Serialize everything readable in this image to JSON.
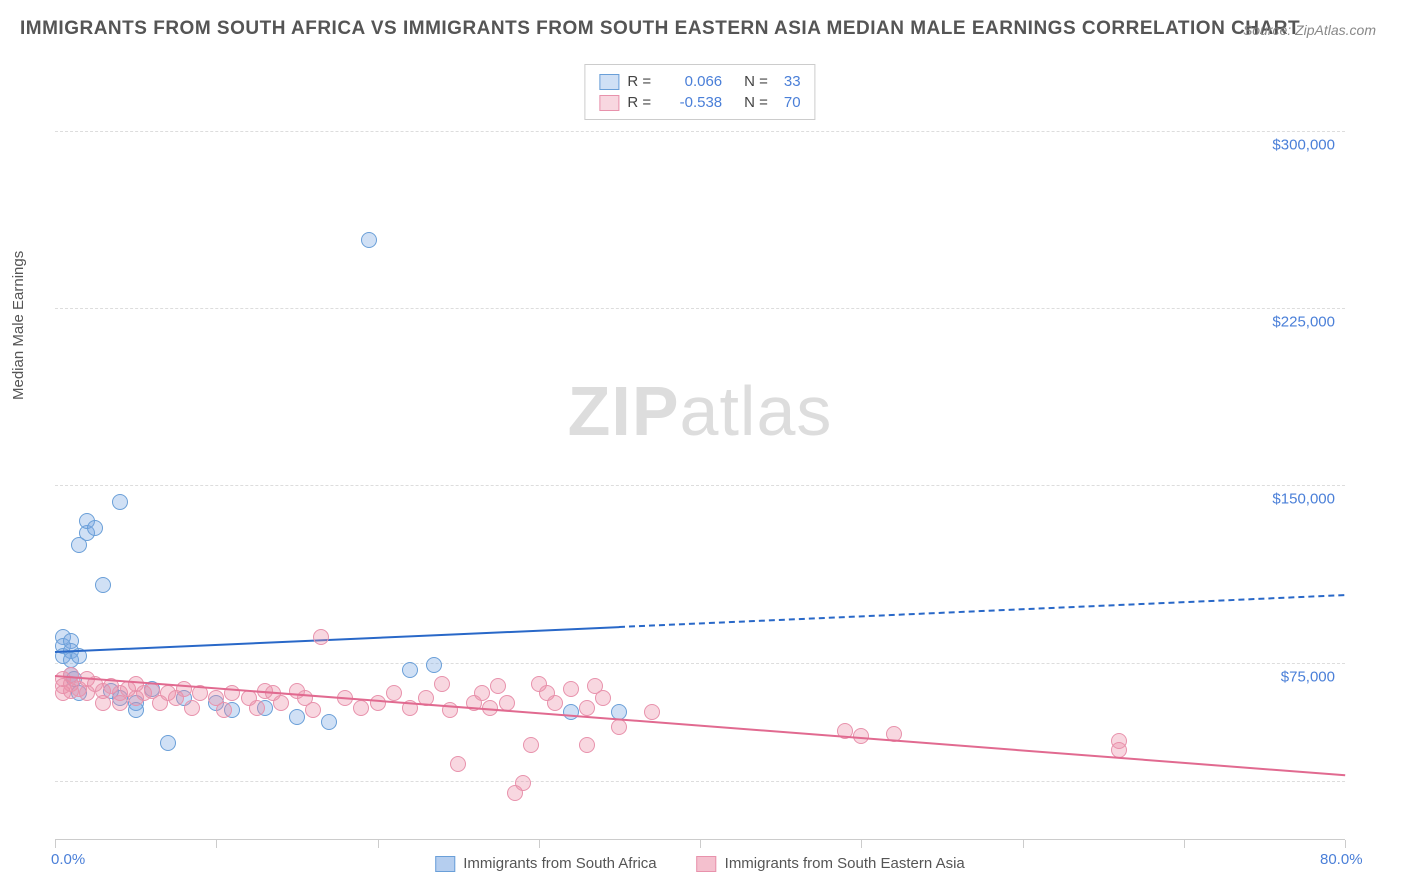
{
  "title": "IMMIGRANTS FROM SOUTH AFRICA VS IMMIGRANTS FROM SOUTH EASTERN ASIA MEDIAN MALE EARNINGS CORRELATION CHART",
  "source": "Source: ZipAtlas.com",
  "y_axis_label": "Median Male Earnings",
  "watermark_bold": "ZIP",
  "watermark_light": "atlas",
  "chart": {
    "type": "scatter",
    "xlim": [
      0,
      80
    ],
    "ylim": [
      0,
      330000
    ],
    "x_tick_positions": [
      0,
      10,
      20,
      30,
      40,
      50,
      60,
      70,
      80
    ],
    "x_tick_labels": {
      "0": "0.0%",
      "80": "80.0%"
    },
    "y_gridlines": [
      25000,
      75000,
      150000,
      225000,
      300000
    ],
    "y_tick_labels": {
      "75000": "$75,000",
      "150000": "$150,000",
      "225000": "$225,000",
      "300000": "$300,000"
    },
    "background_color": "#ffffff",
    "grid_color": "#dddddd",
    "axis_label_color": "#555555",
    "tick_label_color": "#4a7fd8",
    "series": [
      {
        "name": "Immigrants from South Africa",
        "color_fill": "rgba(120,165,225,0.35)",
        "color_stroke": "#6a9fd8",
        "line_color": "#2968c8",
        "marker_radius": 8,
        "R": "0.066",
        "N": "33",
        "regression": {
          "x1": 0,
          "y1": 80000,
          "x2": 80,
          "y2": 104000,
          "dash_after_x": 35
        },
        "points": [
          [
            0.5,
            86000
          ],
          [
            0.5,
            82000
          ],
          [
            0.5,
            78000
          ],
          [
            1.0,
            84000
          ],
          [
            1.0,
            80000
          ],
          [
            1.0,
            76000
          ],
          [
            1.0,
            70000
          ],
          [
            1.2,
            68000
          ],
          [
            1.5,
            125000
          ],
          [
            1.5,
            78000
          ],
          [
            1.5,
            62000
          ],
          [
            2.0,
            130000
          ],
          [
            2.0,
            135000
          ],
          [
            2.5,
            132000
          ],
          [
            3.0,
            108000
          ],
          [
            3.5,
            63000
          ],
          [
            4.0,
            143000
          ],
          [
            4.0,
            60000
          ],
          [
            5.0,
            58000
          ],
          [
            5.0,
            55000
          ],
          [
            6.0,
            64000
          ],
          [
            7.0,
            41000
          ],
          [
            8.0,
            60000
          ],
          [
            10.0,
            58000
          ],
          [
            11.0,
            55000
          ],
          [
            13.0,
            56000
          ],
          [
            15.0,
            52000
          ],
          [
            17.0,
            50000
          ],
          [
            19.5,
            254000
          ],
          [
            22.0,
            72000
          ],
          [
            23.5,
            74000
          ],
          [
            32.0,
            54000
          ],
          [
            35.0,
            54000
          ]
        ]
      },
      {
        "name": "Immigrants from South Eastern Asia",
        "color_fill": "rgba(235,140,165,0.35)",
        "color_stroke": "#e892ac",
        "line_color": "#e16a90",
        "marker_radius": 8,
        "R": "-0.538",
        "N": "70",
        "regression": {
          "x1": 0,
          "y1": 70000,
          "x2": 80,
          "y2": 28000,
          "dash_after_x": null
        },
        "points": [
          [
            0.5,
            68000
          ],
          [
            0.5,
            65000
          ],
          [
            0.5,
            62000
          ],
          [
            1.0,
            70000
          ],
          [
            1.0,
            66000
          ],
          [
            1.0,
            63000
          ],
          [
            1.5,
            64000
          ],
          [
            2.0,
            68000
          ],
          [
            2.0,
            62000
          ],
          [
            2.5,
            66000
          ],
          [
            3.0,
            63000
          ],
          [
            3.0,
            58000
          ],
          [
            3.5,
            65000
          ],
          [
            4.0,
            62000
          ],
          [
            4.0,
            58000
          ],
          [
            4.5,
            64000
          ],
          [
            5.0,
            66000
          ],
          [
            5.0,
            60000
          ],
          [
            5.5,
            62000
          ],
          [
            6.0,
            63000
          ],
          [
            6.5,
            58000
          ],
          [
            7.0,
            62000
          ],
          [
            7.5,
            60000
          ],
          [
            8.0,
            64000
          ],
          [
            8.5,
            56000
          ],
          [
            9.0,
            62000
          ],
          [
            10.0,
            60000
          ],
          [
            10.5,
            55000
          ],
          [
            11.0,
            62000
          ],
          [
            12.0,
            60000
          ],
          [
            12.5,
            56000
          ],
          [
            13.0,
            63000
          ],
          [
            13.5,
            62000
          ],
          [
            14.0,
            58000
          ],
          [
            15.0,
            63000
          ],
          [
            15.5,
            60000
          ],
          [
            16.0,
            55000
          ],
          [
            16.5,
            86000
          ],
          [
            18.0,
            60000
          ],
          [
            19.0,
            56000
          ],
          [
            20.0,
            58000
          ],
          [
            21.0,
            62000
          ],
          [
            22.0,
            56000
          ],
          [
            23.0,
            60000
          ],
          [
            24.0,
            66000
          ],
          [
            24.5,
            55000
          ],
          [
            25.0,
            32000
          ],
          [
            26.0,
            58000
          ],
          [
            26.5,
            62000
          ],
          [
            27.0,
            56000
          ],
          [
            27.5,
            65000
          ],
          [
            28.0,
            58000
          ],
          [
            28.5,
            20000
          ],
          [
            29.0,
            24000
          ],
          [
            29.5,
            40000
          ],
          [
            30.0,
            66000
          ],
          [
            30.5,
            62000
          ],
          [
            31.0,
            58000
          ],
          [
            32.0,
            64000
          ],
          [
            33.0,
            56000
          ],
          [
            33.0,
            40000
          ],
          [
            33.5,
            65000
          ],
          [
            34.0,
            60000
          ],
          [
            35.0,
            48000
          ],
          [
            37.0,
            54000
          ],
          [
            49.0,
            46000
          ],
          [
            50.0,
            44000
          ],
          [
            52.0,
            45000
          ],
          [
            66.0,
            38000
          ],
          [
            66.0,
            42000
          ]
        ]
      }
    ],
    "legend_top_labels": {
      "R": "R =",
      "N": "N ="
    },
    "legend_bottom": [
      {
        "label": "Immigrants from South Africa",
        "fill": "rgba(120,165,225,0.55)",
        "stroke": "#6a9fd8"
      },
      {
        "label": "Immigrants from South Eastern Asia",
        "fill": "rgba(235,140,165,0.55)",
        "stroke": "#e892ac"
      }
    ]
  }
}
